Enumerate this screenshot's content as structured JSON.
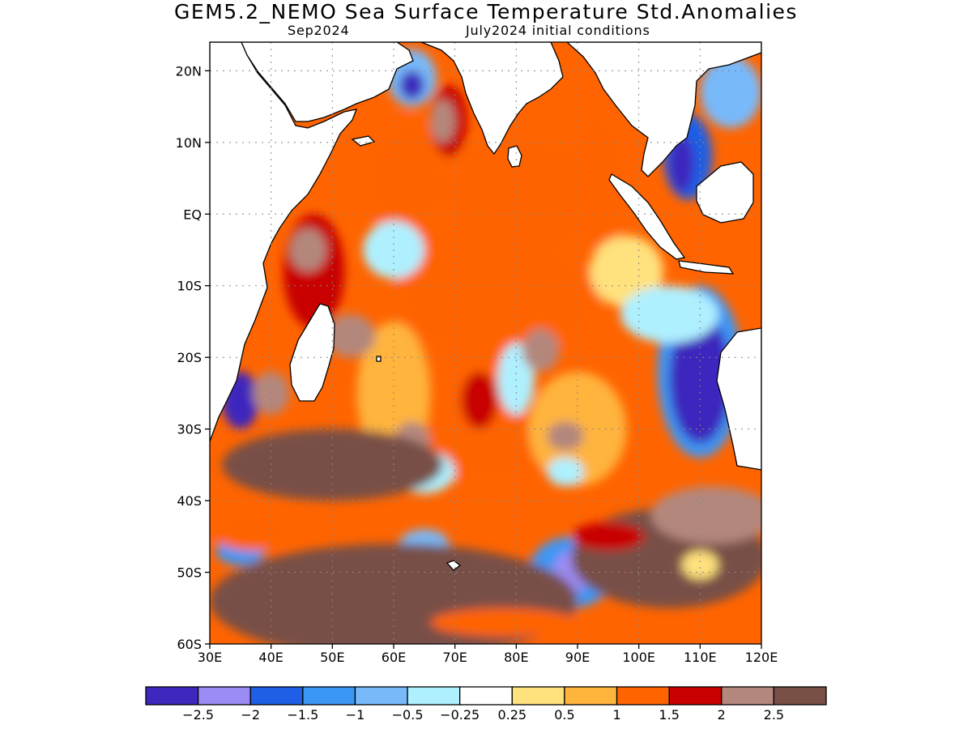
{
  "title": "GEM5.2_NEMO Sea Surface Temperature Std.Anomalies",
  "subtitle_left": "Sep2024",
  "subtitle_right": "July2024 initial conditions",
  "map": {
    "lon_range": [
      30,
      120
    ],
    "lat_range": [
      -60,
      24
    ],
    "y_ticks": [
      {
        "lat": 20,
        "label": "20N"
      },
      {
        "lat": 10,
        "label": "10N"
      },
      {
        "lat": 0,
        "label": "EQ"
      },
      {
        "lat": -10,
        "label": "10S"
      },
      {
        "lat": -20,
        "label": "20S"
      },
      {
        "lat": -30,
        "label": "30S"
      },
      {
        "lat": -40,
        "label": "40S"
      },
      {
        "lat": -50,
        "label": "50S"
      },
      {
        "lat": -60,
        "label": "60S"
      }
    ],
    "x_ticks": [
      {
        "lon": 30,
        "label": "30E"
      },
      {
        "lon": 40,
        "label": "40E"
      },
      {
        "lon": 50,
        "label": "50E"
      },
      {
        "lon": 60,
        "label": "60E"
      },
      {
        "lon": 70,
        "label": "70E"
      },
      {
        "lon": 80,
        "label": "80E"
      },
      {
        "lon": 90,
        "label": "90E"
      },
      {
        "lon": 100,
        "label": "100E"
      },
      {
        "lon": 110,
        "label": "110E"
      },
      {
        "lon": 120,
        "label": "120E"
      }
    ],
    "grid": "dotted"
  },
  "colorbar": {
    "colors": [
      "#3c28bd",
      "#9b8cf5",
      "#1e5fe6",
      "#3c96f5",
      "#78b9fa",
      "#aff0ff",
      "#ffffff",
      "#ffe17d",
      "#ffb43c",
      "#ff6400",
      "#c80000",
      "#b4877d",
      "#785046"
    ],
    "labels": [
      "-2.5",
      "-2",
      "-1.5",
      "-1",
      "-0.5",
      "-0.25",
      "0.25",
      "0.5",
      "1",
      "1.5",
      "2",
      "2.5"
    ]
  },
  "anomaly_fields": [
    {
      "lon": 62,
      "lat": 5,
      "rx": 7,
      "ry": 9,
      "level": 10
    },
    {
      "lon": 80,
      "lat": 2,
      "rx": 12,
      "ry": 10,
      "level": 10
    },
    {
      "lon": 93,
      "lat": 5,
      "rx": 6,
      "ry": 10,
      "level": 10
    },
    {
      "lon": 70,
      "lat": -10,
      "rx": 10,
      "ry": 9,
      "level": 10
    },
    {
      "lon": 85,
      "lat": -12,
      "rx": 9,
      "ry": 7,
      "level": 10
    },
    {
      "lon": 75,
      "lat": -20,
      "rx": 8,
      "ry": 9,
      "level": 10
    },
    {
      "lon": 60,
      "lat": -25,
      "rx": 6,
      "ry": 10,
      "level": 9
    },
    {
      "lon": 75,
      "lat": -32,
      "rx": 10,
      "ry": 6,
      "level": 10
    },
    {
      "lon": 90,
      "lat": -30,
      "rx": 8,
      "ry": 8,
      "level": 9
    },
    {
      "lon": 98,
      "lat": -8,
      "rx": 6,
      "ry": 5,
      "level": 8
    },
    {
      "lon": 60,
      "lat": -5,
      "rx": 5,
      "ry": 4,
      "level": 6
    },
    {
      "lon": 80,
      "lat": -23,
      "rx": 3,
      "ry": 5,
      "level": 6
    },
    {
      "lon": 65,
      "lat": -36,
      "rx": 5,
      "ry": 3,
      "level": 6
    },
    {
      "lon": 88,
      "lat": -36,
      "rx": 3,
      "ry": 2,
      "level": 6
    },
    {
      "lon": 47,
      "lat": -8,
      "rx": 5,
      "ry": 8,
      "level": 11
    },
    {
      "lon": 46,
      "lat": -5,
      "rx": 3,
      "ry": 3,
      "level": 12
    },
    {
      "lon": 53,
      "lat": -17,
      "rx": 4,
      "ry": 3,
      "level": 12
    },
    {
      "lon": 69,
      "lat": 13,
      "rx": 3,
      "ry": 5,
      "level": 11
    },
    {
      "lon": 68,
      "lat": 13,
      "rx": 2,
      "ry": 3,
      "level": 12
    },
    {
      "lon": 74,
      "lat": -26,
      "rx": 3,
      "ry": 4,
      "level": 11
    },
    {
      "lon": 84,
      "lat": -19,
      "rx": 3,
      "ry": 3,
      "level": 12
    },
    {
      "lon": 63,
      "lat": -32,
      "rx": 3,
      "ry": 3,
      "level": 12
    },
    {
      "lon": 88,
      "lat": -31,
      "rx": 3,
      "ry": 2,
      "level": 12
    },
    {
      "lon": 63,
      "lat": 19,
      "rx": 4,
      "ry": 4,
      "level": 5
    },
    {
      "lon": 63,
      "lat": 18,
      "rx": 2,
      "ry": 2,
      "level": 1
    },
    {
      "lon": 110,
      "lat": -22,
      "rx": 7,
      "ry": 12,
      "level": 4
    },
    {
      "lon": 110,
      "lat": -23,
      "rx": 5,
      "ry": 9,
      "level": 1
    },
    {
      "lon": 105,
      "lat": -14,
      "rx": 8,
      "ry": 4,
      "level": 6
    },
    {
      "lon": 108,
      "lat": 8,
      "rx": 4,
      "ry": 6,
      "level": 3
    },
    {
      "lon": 107,
      "lat": 7,
      "rx": 2,
      "ry": 4,
      "level": 1
    },
    {
      "lon": 115,
      "lat": 17,
      "rx": 5,
      "ry": 5,
      "level": 5
    },
    {
      "lon": 89,
      "lat": -50,
      "rx": 7,
      "ry": 5,
      "level": 4
    },
    {
      "lon": 89,
      "lat": -50,
      "rx": 3,
      "ry": 3,
      "level": 2
    },
    {
      "lon": 35,
      "lat": -26,
      "rx": 3,
      "ry": 4,
      "level": 1
    },
    {
      "lon": 40,
      "lat": -25,
      "rx": 3,
      "ry": 3,
      "level": 12
    },
    {
      "lon": 35,
      "lat": -47,
      "rx": 4,
      "ry": 2,
      "level": 4
    },
    {
      "lon": 65,
      "lat": -46,
      "rx": 4,
      "ry": 2,
      "level": 5
    },
    {
      "lon": 50,
      "lat": -35,
      "rx": 18,
      "ry": 5,
      "level": 13
    },
    {
      "lon": 60,
      "lat": -54,
      "rx": 30,
      "ry": 8,
      "level": 13
    },
    {
      "lon": 105,
      "lat": -48,
      "rx": 16,
      "ry": 7,
      "level": 13
    },
    {
      "lon": 112,
      "lat": -42,
      "rx": 10,
      "ry": 4,
      "level": 12
    },
    {
      "lon": 110,
      "lat": -49,
      "rx": 3,
      "ry": 2,
      "level": 8
    },
    {
      "lon": 37,
      "lat": -44,
      "rx": 7,
      "ry": 3,
      "level": 10
    },
    {
      "lon": 95,
      "lat": -45,
      "rx": 6,
      "ry": 2,
      "level": 11
    },
    {
      "lon": 78,
      "lat": -57,
      "rx": 12,
      "ry": 2,
      "level": 10
    },
    {
      "lon": 115,
      "lat": -58,
      "rx": 6,
      "ry": 2,
      "level": 10
    }
  ]
}
